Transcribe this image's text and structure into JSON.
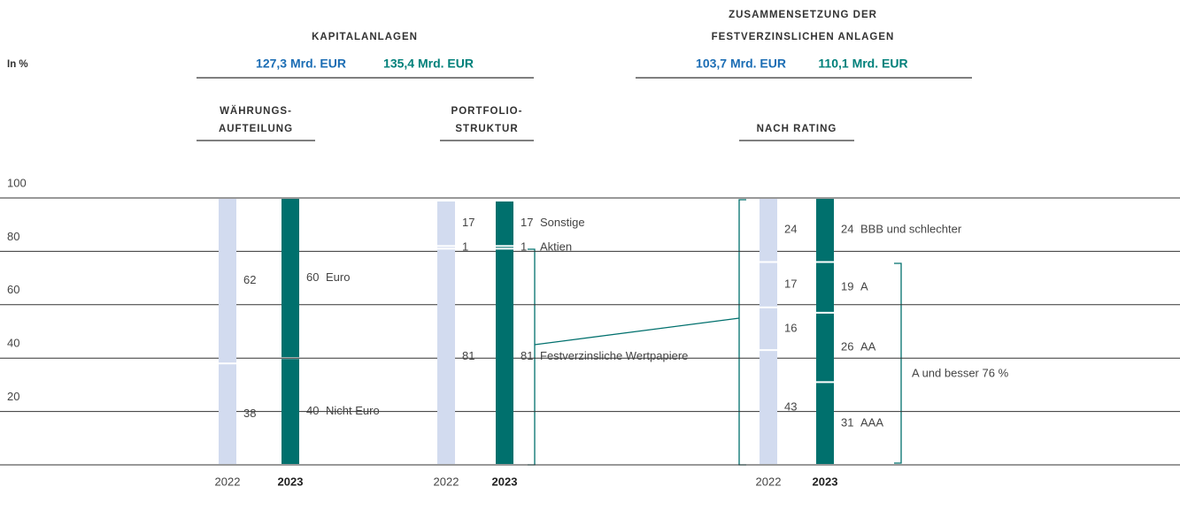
{
  "chart_data": {
    "type": "stacked-bar",
    "unit_label": "In %",
    "headers": [
      {
        "title": [
          "KAPITALANLAGEN"
        ],
        "totals": [
          "127,3 Mrd. EUR",
          "135,4 Mrd. EUR"
        ]
      },
      {
        "title": [
          "ZUSAMMENSETZUNG DER",
          "FESTVERZINSLICHEN ANLAGEN"
        ],
        "totals": [
          "103,7 Mrd. EUR",
          "110,1 Mrd. EUR"
        ]
      }
    ],
    "total_colors": [
      "#1b6db4",
      "#00807a"
    ],
    "year_colors": [
      "#d2dbef",
      "#00706d"
    ],
    "annotation": "A und besser 76 %",
    "ylim": [
      0,
      100
    ],
    "yticks": [
      20,
      40,
      60,
      80,
      100
    ],
    "groups": [
      {
        "title": [
          "WÄHRUNGS-",
          "AUFTEILUNG"
        ],
        "categories": [
          "2022",
          "2023"
        ],
        "series": [
          {
            "name": "Nicht Euro",
            "values": [
              38,
              40
            ]
          },
          {
            "name": "Euro",
            "values": [
              62,
              60
            ]
          }
        ]
      },
      {
        "title": [
          "PORTFOLIO-",
          "STRUKTUR"
        ],
        "categories": [
          "2022",
          "2023"
        ],
        "series": [
          {
            "name": "Festverzinsliche Wertpapiere",
            "values": [
              81,
              81
            ]
          },
          {
            "name": "Aktien",
            "values": [
              1,
              1
            ]
          },
          {
            "name": "Sonstige",
            "values": [
              17,
              17
            ]
          }
        ]
      },
      {
        "title": [
          "NACH RATING"
        ],
        "categories": [
          "2022",
          "2023"
        ],
        "series": [
          {
            "name": "AAA",
            "values": [
              43,
              31
            ]
          },
          {
            "name": "AA",
            "values": [
              16,
              26
            ]
          },
          {
            "name": "A",
            "values": [
              17,
              19
            ]
          },
          {
            "name": "BBB und schlechter",
            "values": [
              24,
              24
            ]
          }
        ]
      }
    ]
  }
}
